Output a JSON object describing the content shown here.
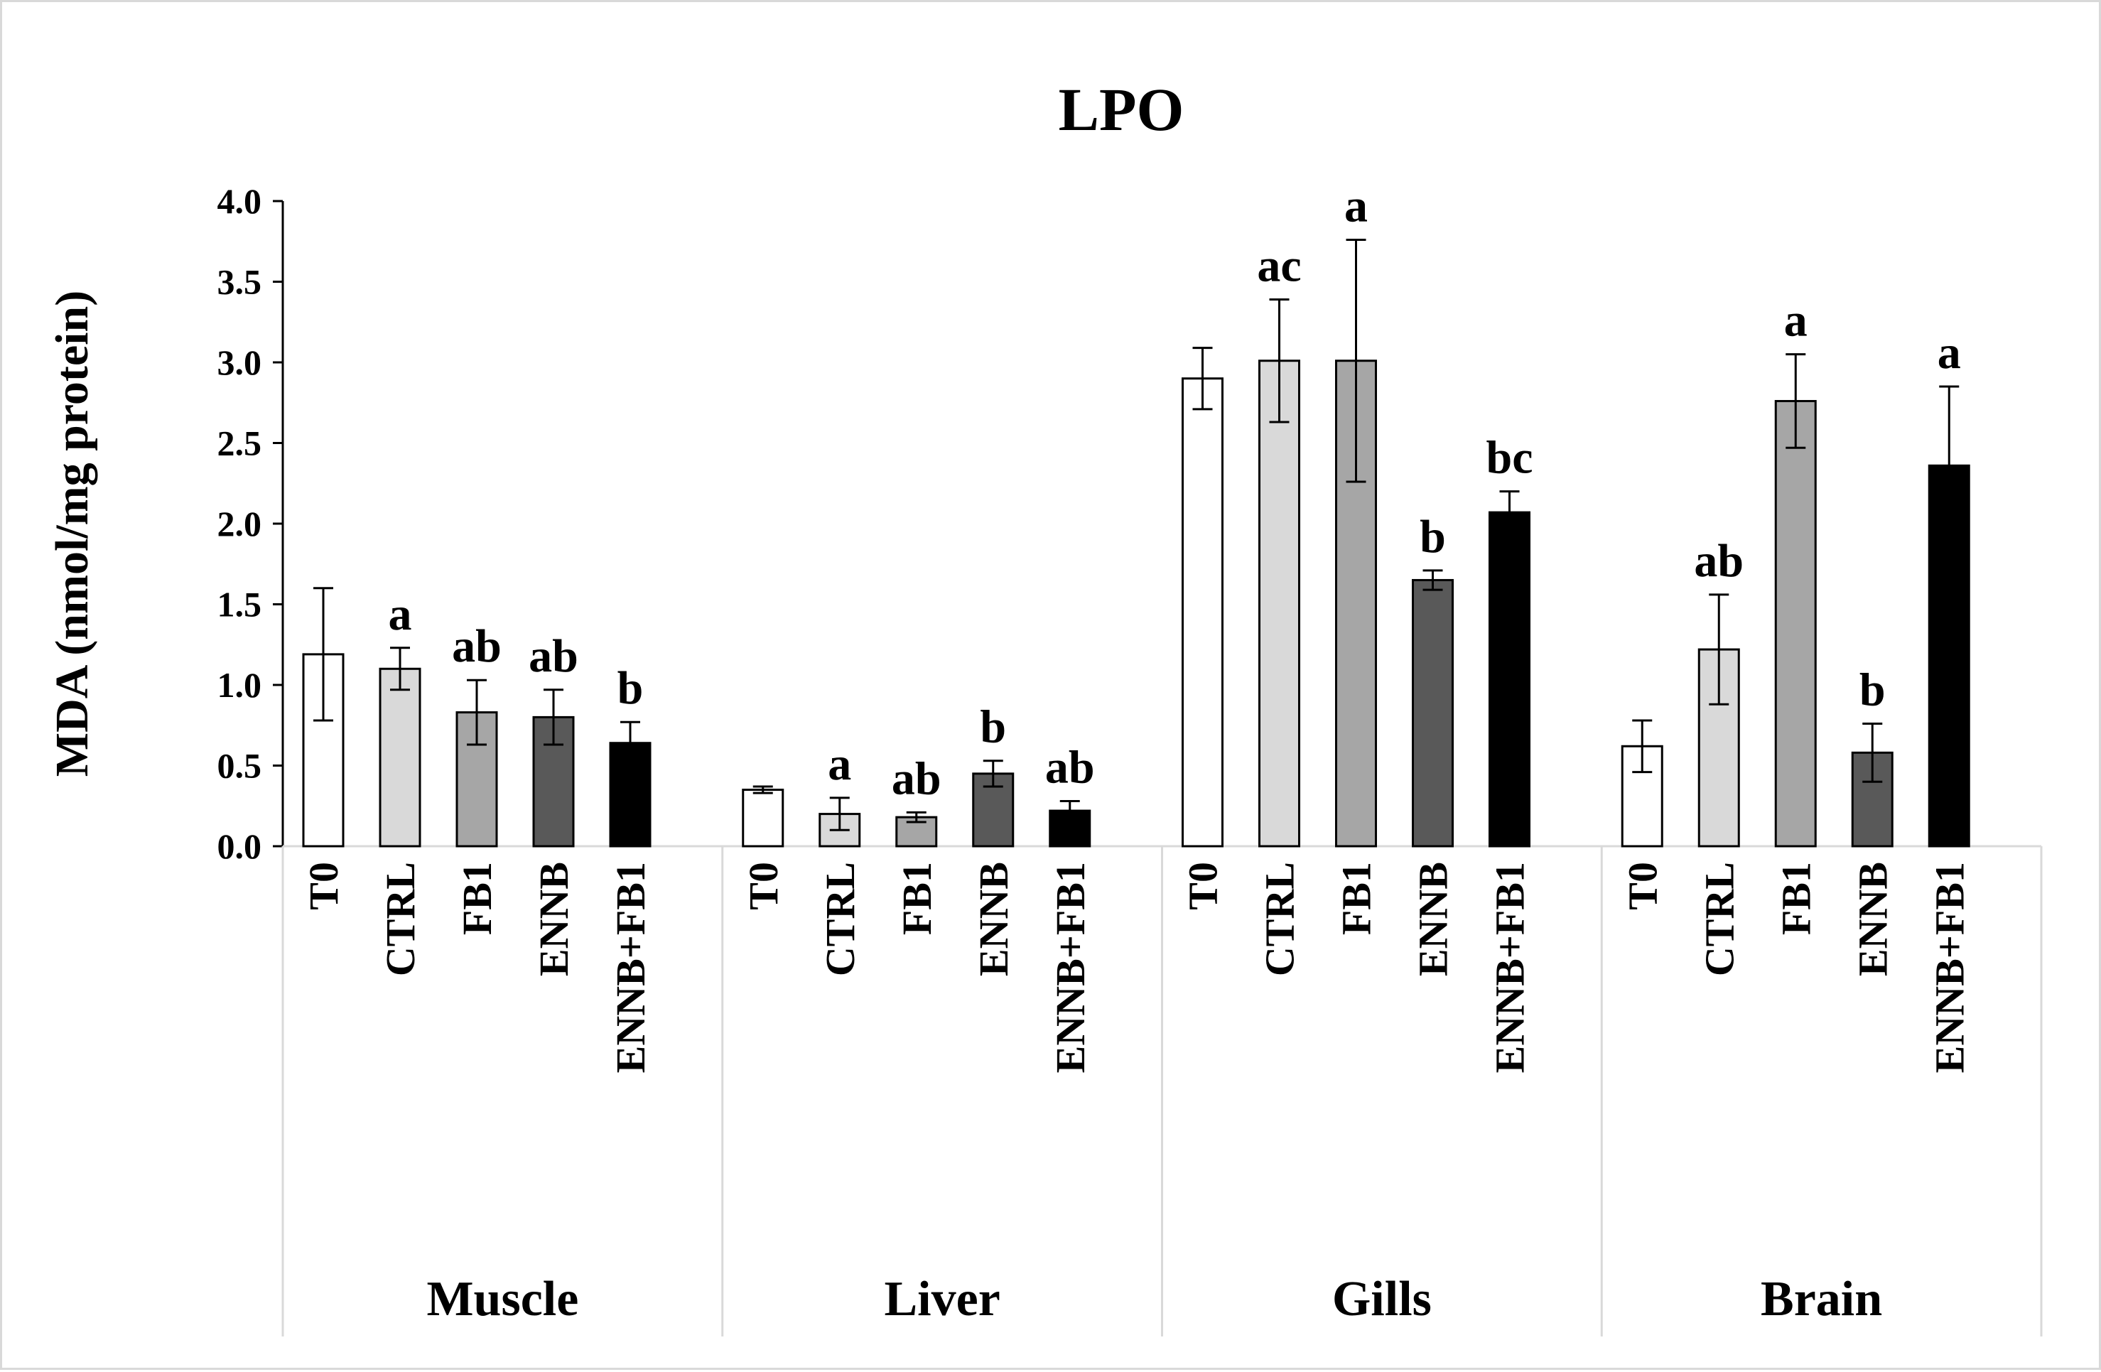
{
  "chart_data": {
    "type": "bar",
    "title": "LPO",
    "xlabel": "",
    "ylabel": "MDA (nmol/mg protein)",
    "ylim": [
      0,
      4.0
    ],
    "yticks": [
      "0.0",
      "0.5",
      "1.0",
      "1.5",
      "2.0",
      "2.5",
      "3.0",
      "3.5",
      "4.0"
    ],
    "grid": false,
    "legend": "none",
    "categories": [
      "T0",
      "CTRL",
      "FB1",
      "ENNB",
      "ENNB+FB1"
    ],
    "colors": [
      "#ffffff",
      "#d9d9d9",
      "#a6a6a6",
      "#595959",
      "#000000"
    ],
    "groups": [
      {
        "name": "Muscle",
        "values": [
          1.19,
          1.1,
          0.83,
          0.8,
          0.64
        ],
        "errors": [
          0.41,
          0.13,
          0.2,
          0.17,
          0.13
        ],
        "labels": [
          "",
          "a",
          "ab",
          "ab",
          "b"
        ]
      },
      {
        "name": "Liver",
        "values": [
          0.35,
          0.2,
          0.18,
          0.45,
          0.22
        ],
        "errors": [
          0.02,
          0.1,
          0.03,
          0.08,
          0.06
        ],
        "labels": [
          "",
          "a",
          "ab",
          "b",
          "ab"
        ]
      },
      {
        "name": "Gills",
        "values": [
          2.9,
          3.01,
          3.01,
          1.65,
          2.07
        ],
        "errors": [
          0.19,
          0.38,
          0.75,
          0.06,
          0.13
        ],
        "labels": [
          "",
          "ac",
          "a",
          "b",
          "bc"
        ]
      },
      {
        "name": "Brain",
        "values": [
          0.62,
          1.22,
          2.76,
          0.58,
          2.36
        ],
        "errors": [
          0.16,
          0.34,
          0.29,
          0.18,
          0.49
        ],
        "labels": [
          "",
          "ab",
          "a",
          "b",
          "a"
        ]
      }
    ]
  }
}
